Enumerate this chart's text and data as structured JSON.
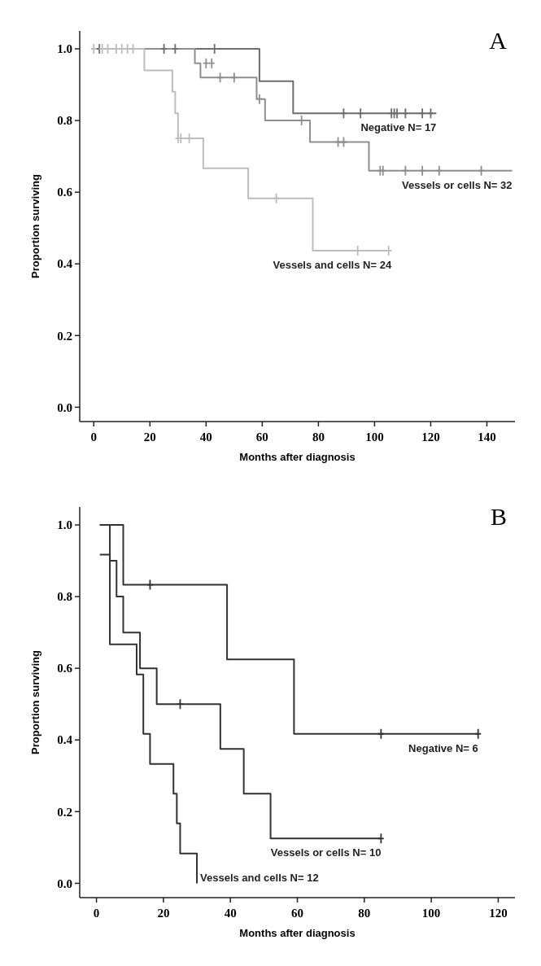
{
  "chart_data": [
    {
      "type": "step",
      "xlabel": "Months after diagnosis",
      "ylabel": "Proportion surviving",
      "annotations": [
        "A"
      ],
      "xlim": [
        -5,
        150
      ],
      "ylim": [
        -0.04,
        1.05
      ],
      "xticks": [
        0,
        20,
        40,
        60,
        80,
        100,
        120,
        140
      ],
      "yticks": [
        {
          "value": 0,
          "label": "0.0"
        },
        {
          "value": 0.2,
          "label": "0.2"
        },
        {
          "value": 0.4,
          "label": "0.4"
        },
        {
          "value": 0.6,
          "label": "0.6"
        },
        {
          "value": 0.8,
          "label": "0.8"
        },
        {
          "value": 1,
          "label": "1.0"
        }
      ],
      "marker": "none",
      "line_style": "solid",
      "legend": "right",
      "series": [
        {
          "name": "Negative N= 17",
          "color": "#6e6e6e",
          "x": [
            0,
            59,
            71,
            122
          ],
          "values": [
            1,
            0.91,
            0.82,
            0.82
          ]
        },
        {
          "name": "Vessels or cells N= 32",
          "color": "#8f8f8f",
          "x": [
            0,
            36,
            38,
            58,
            61,
            77,
            98,
            149
          ],
          "values": [
            1,
            0.96,
            0.92,
            0.86,
            0.8,
            0.74,
            0.66,
            0.66
          ]
        },
        {
          "name": "Vessels and cells N= 24",
          "color": "#bdbdbd",
          "x": [
            0,
            18,
            28,
            29,
            30,
            39,
            55,
            78,
            106
          ],
          "values": [
            1,
            0.94,
            0.88,
            0.82,
            0.75,
            0.667,
            0.583,
            0.437,
            0.437
          ]
        },
        {
          "type": "scatter",
          "marker": "cross",
          "color": "#6e6e6e",
          "x": [
            2,
            25,
            29,
            43,
            89,
            95,
            106,
            107,
            108,
            111,
            117,
            120
          ],
          "values": [
            1,
            1,
            1,
            1,
            0.82,
            0.82,
            0.82,
            0.82,
            0.82,
            0.82,
            0.82,
            0.82
          ]
        },
        {
          "type": "scatter",
          "marker": "cross",
          "color": "#8f8f8f",
          "x": [
            40,
            42,
            45,
            50,
            59,
            74,
            87,
            89,
            102,
            103,
            111,
            117,
            123,
            138
          ],
          "values": [
            0.96,
            0.96,
            0.92,
            0.92,
            0.86,
            0.8,
            0.74,
            0.74,
            0.66,
            0.66,
            0.66,
            0.66,
            0.66,
            0.66
          ]
        },
        {
          "type": "scatter",
          "marker": "cross",
          "color": "#bdbdbd",
          "x": [
            0,
            3,
            5,
            8,
            10,
            12,
            14,
            30,
            31,
            34,
            65,
            94,
            105
          ],
          "values": [
            1,
            1,
            1,
            1,
            1,
            1,
            1,
            0.75,
            0.75,
            0.75,
            0.583,
            0.437,
            0.437
          ]
        }
      ]
    },
    {
      "type": "step",
      "xlabel": "Months after diagnosis",
      "ylabel": "Proportion surviving",
      "annotations": [
        "B"
      ],
      "xlim": [
        -5,
        125
      ],
      "ylim": [
        -0.04,
        1.05
      ],
      "xticks": [
        0,
        20,
        40,
        60,
        80,
        100,
        120
      ],
      "yticks": [
        {
          "value": 0,
          "label": "0.0"
        },
        {
          "value": 0.2,
          "label": "0.2"
        },
        {
          "value": 0.4,
          "label": "0.4"
        },
        {
          "value": 0.6,
          "label": "0.6"
        },
        {
          "value": 0.8,
          "label": "0.8"
        },
        {
          "value": 1,
          "label": "1.0"
        }
      ],
      "marker": "none",
      "line_style": "solid",
      "legend": "right",
      "series": [
        {
          "name": "Negative N= 6",
          "color": "#333333",
          "x": [
            1,
            8,
            39,
            59,
            114
          ],
          "values": [
            1,
            0.833,
            0.625,
            0.417,
            0.417
          ]
        },
        {
          "name": "Vessels or cells N= 10",
          "color": "#333333",
          "x": [
            1,
            4,
            6,
            8,
            13,
            18,
            37,
            44,
            52,
            85
          ],
          "values": [
            1,
            0.9,
            0.8,
            0.7,
            0.6,
            0.5,
            0.375,
            0.25,
            0.125,
            0.125
          ]
        },
        {
          "name": "Vessels and cells N= 12",
          "color": "#333333",
          "x": [
            1,
            4,
            12,
            14,
            16,
            23,
            24,
            25,
            30
          ],
          "values": [
            0.917,
            0.667,
            0.583,
            0.417,
            0.333,
            0.25,
            0.167,
            0.083,
            0
          ]
        },
        {
          "type": "scatter",
          "marker": "cross",
          "color": "#333333",
          "x": [
            16,
            85,
            114
          ],
          "values": [
            0.833,
            0.417,
            0.417
          ]
        },
        {
          "type": "scatter",
          "marker": "cross",
          "color": "#333333",
          "x": [
            25,
            85
          ],
          "values": [
            0.5,
            0.125
          ]
        }
      ]
    }
  ]
}
